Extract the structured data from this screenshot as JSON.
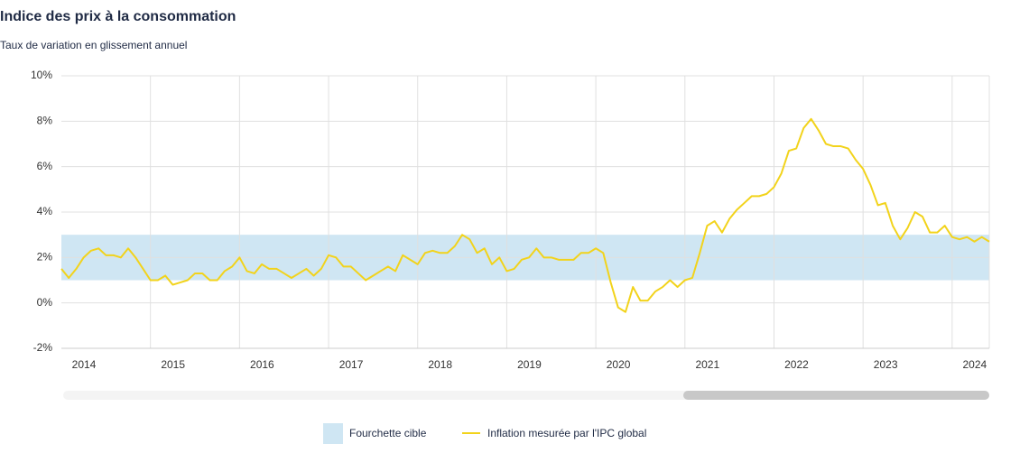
{
  "chart_data": {
    "type": "line",
    "title": "Indice des prix à la consommation",
    "subtitle": "Taux de variation en glissement annuel",
    "x": [
      2014,
      2014.083,
      2014.167,
      2014.25,
      2014.333,
      2014.417,
      2014.5,
      2014.583,
      2014.667,
      2014.75,
      2014.833,
      2014.917,
      2015,
      2015.083,
      2015.167,
      2015.25,
      2015.333,
      2015.417,
      2015.5,
      2015.583,
      2015.667,
      2015.75,
      2015.833,
      2015.917,
      2016,
      2016.083,
      2016.167,
      2016.25,
      2016.333,
      2016.417,
      2016.5,
      2016.583,
      2016.667,
      2016.75,
      2016.833,
      2016.917,
      2017,
      2017.083,
      2017.167,
      2017.25,
      2017.333,
      2017.417,
      2017.5,
      2017.583,
      2017.667,
      2017.75,
      2017.833,
      2017.917,
      2018,
      2018.083,
      2018.167,
      2018.25,
      2018.333,
      2018.417,
      2018.5,
      2018.583,
      2018.667,
      2018.75,
      2018.833,
      2018.917,
      2019,
      2019.083,
      2019.167,
      2019.25,
      2019.333,
      2019.417,
      2019.5,
      2019.583,
      2019.667,
      2019.75,
      2019.833,
      2019.917,
      2020,
      2020.083,
      2020.167,
      2020.25,
      2020.333,
      2020.417,
      2020.5,
      2020.583,
      2020.667,
      2020.75,
      2020.833,
      2020.917,
      2021,
      2021.083,
      2021.167,
      2021.25,
      2021.333,
      2021.417,
      2021.5,
      2021.583,
      2021.667,
      2021.75,
      2021.833,
      2021.917,
      2022,
      2022.083,
      2022.167,
      2022.25,
      2022.333,
      2022.417,
      2022.5,
      2022.583,
      2022.667,
      2022.75,
      2022.833,
      2022.917,
      2023,
      2023.083,
      2023.167,
      2023.25,
      2023.333,
      2023.417,
      2023.5,
      2023.583,
      2023.667,
      2023.75,
      2023.833,
      2023.917,
      2024,
      2024.083,
      2024.167,
      2024.25,
      2024.333,
      2024.417
    ],
    "series": [
      {
        "name": "Fourchette cible",
        "type": "band",
        "color": "#cfe6f3",
        "range": [
          1,
          3
        ]
      },
      {
        "name": "Inflation mesurée par l'IPC global",
        "color": "#f2d31b",
        "values": [
          1.5,
          1.1,
          1.5,
          2.0,
          2.3,
          2.4,
          2.1,
          2.1,
          2.0,
          2.4,
          2.0,
          1.5,
          1.0,
          1.0,
          1.2,
          0.8,
          0.9,
          1.0,
          1.3,
          1.3,
          1.0,
          1.0,
          1.4,
          1.6,
          2.0,
          1.4,
          1.3,
          1.7,
          1.5,
          1.5,
          1.3,
          1.1,
          1.3,
          1.5,
          1.2,
          1.5,
          2.1,
          2.0,
          1.6,
          1.6,
          1.3,
          1.0,
          1.2,
          1.4,
          1.6,
          1.4,
          2.1,
          1.9,
          1.7,
          2.2,
          2.3,
          2.2,
          2.2,
          2.5,
          3.0,
          2.8,
          2.2,
          2.4,
          1.7,
          2.0,
          1.4,
          1.5,
          1.9,
          2.0,
          2.4,
          2.0,
          2.0,
          1.9,
          1.9,
          1.9,
          2.2,
          2.2,
          2.4,
          2.2,
          0.9,
          -0.2,
          -0.4,
          0.7,
          0.1,
          0.1,
          0.5,
          0.7,
          1.0,
          0.7,
          1.0,
          1.1,
          2.2,
          3.4,
          3.6,
          3.1,
          3.7,
          4.1,
          4.4,
          4.7,
          4.7,
          4.8,
          5.1,
          5.7,
          6.7,
          6.8,
          7.7,
          8.1,
          7.6,
          7.0,
          6.9,
          6.9,
          6.8,
          6.3,
          5.9,
          5.2,
          4.3,
          4.4,
          3.4,
          2.8,
          3.3,
          4.0,
          3.8,
          3.1,
          3.1,
          3.4,
          2.9,
          2.8,
          2.9,
          2.7,
          2.9,
          2.7
        ]
      }
    ],
    "xlim": [
      2014,
      2024.417
    ],
    "xticks": [
      2014,
      2015,
      2016,
      2017,
      2018,
      2019,
      2020,
      2021,
      2022,
      2023,
      2024
    ],
    "ylim": [
      -2,
      10
    ],
    "yticks": [
      {
        "value": -2,
        "label": "-2%"
      },
      {
        "value": 0,
        "label": "0%"
      },
      {
        "value": 2,
        "label": "2%"
      },
      {
        "value": 4,
        "label": "4%"
      },
      {
        "value": 6,
        "label": "6%"
      },
      {
        "value": 8,
        "label": "8%"
      },
      {
        "value": 10,
        "label": "10%"
      }
    ],
    "grid": true,
    "legend": "bottom"
  }
}
